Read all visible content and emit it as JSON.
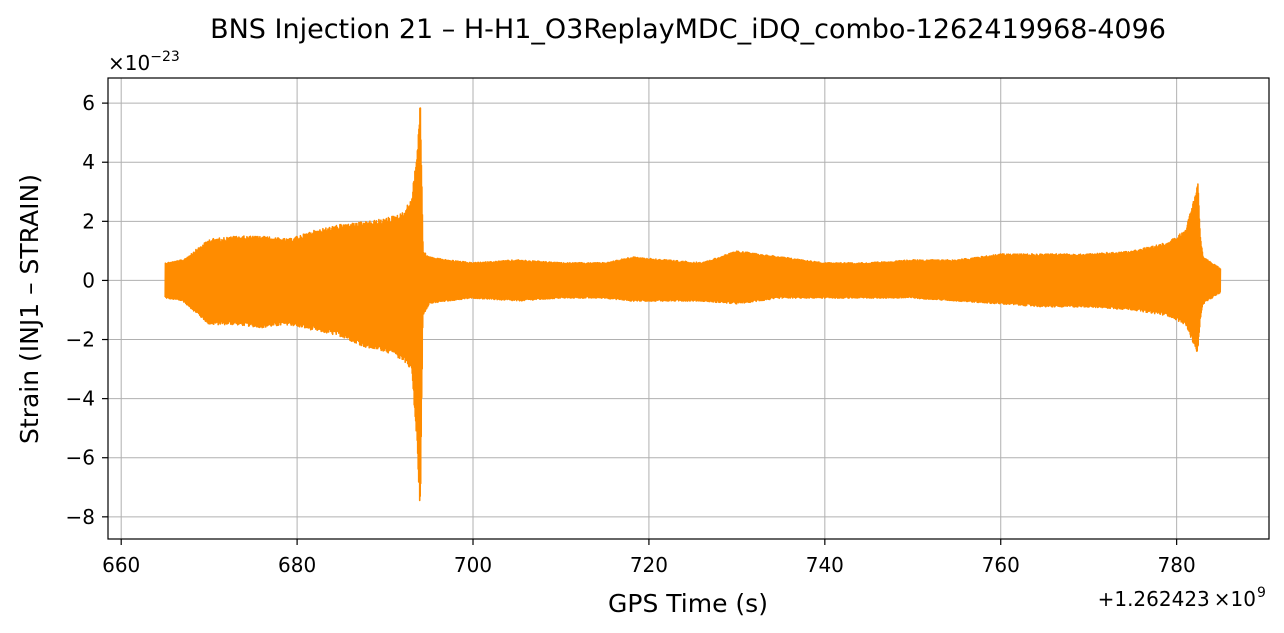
{
  "chart_data": {
    "type": "line",
    "title": "BNS Injection 21 – H-H1_O3ReplayMDC_iDQ_combo-1262419968-4096",
    "xlabel": "GPS Time (s)",
    "ylabel": "Strain (INJ1 – STRAIN)",
    "x_offset_label": "+1.262423",
    "x_offset_exp_label": "×10",
    "x_offset_exp_sup": "9",
    "y_scale_label": "×10",
    "y_scale_sup": "−23",
    "xlim": [
      658.5,
      790.5
    ],
    "ylim": [
      -8.75,
      6.85
    ],
    "x_ticks": [
      660,
      680,
      700,
      720,
      740,
      760,
      780
    ],
    "y_ticks": [
      -8,
      -6,
      -4,
      -2,
      0,
      2,
      4,
      6
    ],
    "y_tick_labels": [
      "−8",
      "−6",
      "−4",
      "−2",
      "0",
      "2",
      "4",
      "6"
    ],
    "grid": true,
    "legend": "none",
    "series": [
      {
        "color": "#ff8c00",
        "x_range": [
          665,
          785
        ],
        "envelope": {
          "x": [
            665,
            667,
            670,
            673,
            676,
            679,
            682,
            685,
            688,
            690,
            692,
            693,
            693.6,
            694,
            694.3,
            695,
            697,
            700,
            705,
            710,
            715,
            718,
            722,
            726,
            730,
            735,
            740,
            745,
            750,
            755,
            760,
            765,
            770,
            775,
            779,
            781,
            782.4,
            782.7,
            783,
            784,
            785
          ],
          "upper": [
            0.6,
            0.7,
            1.4,
            1.5,
            1.5,
            1.4,
            1.7,
            1.9,
            2.0,
            2.1,
            2.3,
            2.8,
            4.4,
            6.1,
            1.0,
            0.8,
            0.7,
            0.6,
            0.7,
            0.6,
            0.6,
            0.8,
            0.7,
            0.6,
            1.0,
            0.8,
            0.6,
            0.6,
            0.7,
            0.7,
            0.9,
            0.9,
            0.9,
            1.0,
            1.3,
            1.7,
            3.3,
            1.4,
            0.8,
            0.6,
            0.4
          ],
          "lower": [
            -0.6,
            -0.7,
            -1.5,
            -1.5,
            -1.6,
            -1.5,
            -1.7,
            -1.9,
            -2.3,
            -2.4,
            -2.7,
            -3.0,
            -5.5,
            -8.0,
            -1.2,
            -0.8,
            -0.7,
            -0.6,
            -0.7,
            -0.6,
            -0.6,
            -0.7,
            -0.7,
            -0.7,
            -0.8,
            -0.6,
            -0.6,
            -0.6,
            -0.6,
            -0.7,
            -0.8,
            -0.9,
            -0.9,
            -1.0,
            -1.2,
            -1.5,
            -2.5,
            -1.3,
            -0.8,
            -0.6,
            -0.4
          ]
        }
      }
    ]
  }
}
